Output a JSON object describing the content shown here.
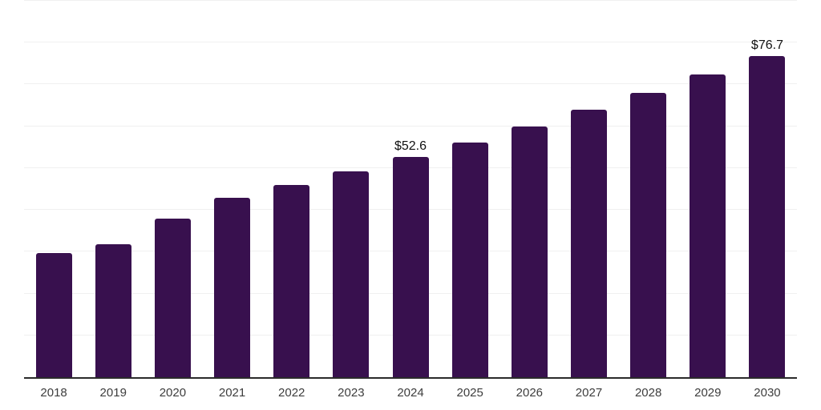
{
  "chart_data": {
    "type": "bar",
    "title": "",
    "xlabel": "",
    "ylabel": "",
    "categories": [
      "2018",
      "2019",
      "2020",
      "2021",
      "2022",
      "2023",
      "2024",
      "2025",
      "2026",
      "2027",
      "2028",
      "2029",
      "2030"
    ],
    "values": [
      29.7,
      31.8,
      38.0,
      42.9,
      45.9,
      49.2,
      52.6,
      56.2,
      59.9,
      63.9,
      68.0,
      72.3,
      76.7
    ],
    "data_labels": {
      "2024": "$52.6",
      "2030": "$76.7"
    },
    "ylim": [
      0,
      90
    ],
    "gridline_step": 10,
    "grid": "horizontal-only",
    "legend_position": "none",
    "y_axis_labels_visible": false,
    "colors": {
      "bar": "#38104E",
      "background": "#FFFFFF",
      "gridline": "#F0F0F0",
      "axis_line": "#2B2B2B",
      "tick_label": "#3D3D3D",
      "data_label": "#111111"
    }
  }
}
